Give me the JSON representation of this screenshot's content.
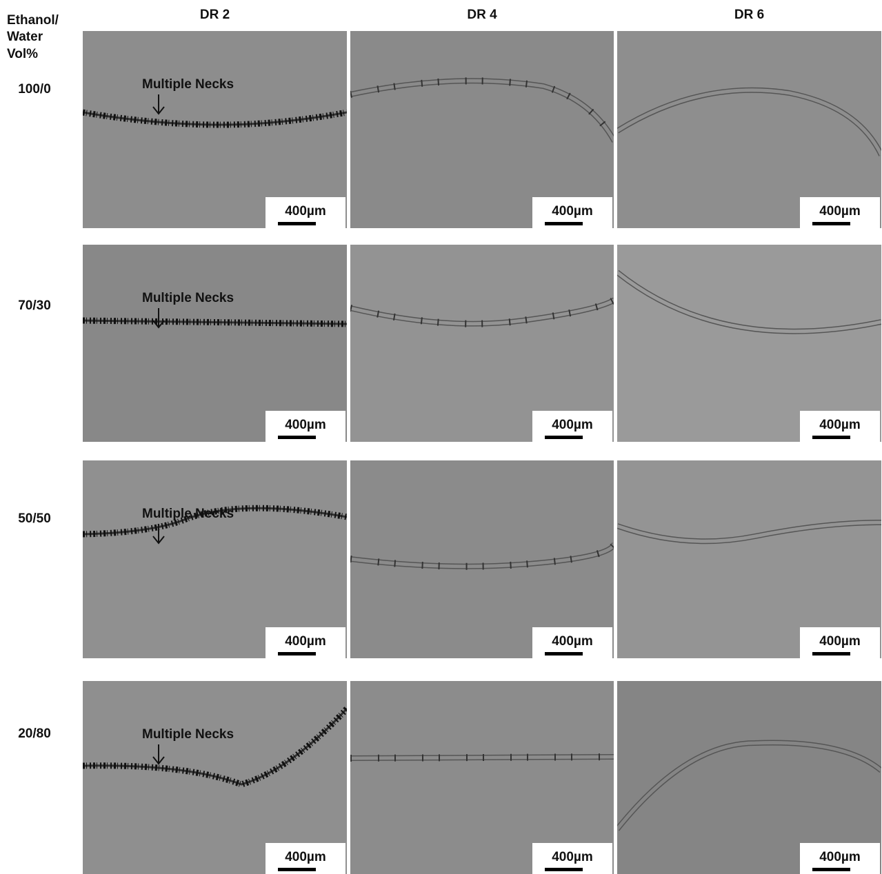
{
  "corner_label": [
    "Ethanol/",
    "Water",
    "Vol%"
  ],
  "columns": [
    "DR 2",
    "DR 4",
    "DR 6"
  ],
  "rows": [
    {
      "label": "100/0",
      "panels": [
        {
          "annotation": "Multiple Necks",
          "scale_bar": "400µm"
        },
        {
          "scale_bar": "400µm"
        },
        {
          "scale_bar": "400µm"
        }
      ]
    },
    {
      "label": "70/30",
      "panels": [
        {
          "annotation": "Multiple Necks",
          "scale_bar": "400µm"
        },
        {
          "scale_bar": "400µm"
        },
        {
          "scale_bar": "400µm"
        }
      ]
    },
    {
      "label": "50/50",
      "panels": [
        {
          "annotation": "Multiple Necks",
          "scale_bar": "400µm"
        },
        {
          "scale_bar": "400µm"
        },
        {
          "scale_bar": "400µm"
        }
      ]
    },
    {
      "label": "20/80",
      "panels": [
        {
          "annotation": "Multiple Necks",
          "scale_bar": "400µm"
        },
        {
          "scale_bar": "400µm"
        },
        {
          "scale_bar": "400µm"
        }
      ]
    }
  ]
}
